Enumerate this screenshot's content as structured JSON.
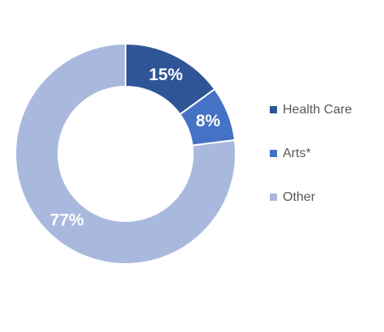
{
  "chart_data": {
    "type": "pie",
    "variant": "donut",
    "title": "",
    "categories": [
      "Health Care",
      "Arts*",
      "Other"
    ],
    "values": [
      15,
      8,
      77
    ],
    "data_labels": [
      "15%",
      "8%",
      "77%"
    ],
    "colors": [
      "#2F5597",
      "#4472C4",
      "#A9B9DE"
    ],
    "legend_position": "right"
  }
}
